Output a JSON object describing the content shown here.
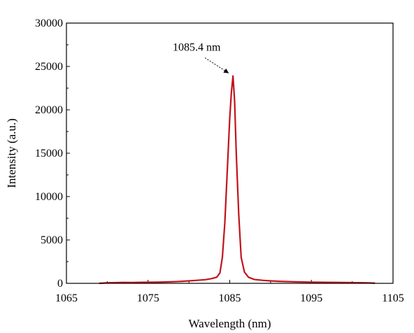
{
  "chart_data": {
    "type": "line",
    "title": "",
    "xlabel": "Wavelength (nm)",
    "ylabel": "Intensity (a.u.)",
    "xlim": [
      1065,
      1105
    ],
    "ylim": [
      0,
      30000
    ],
    "xticks": [
      "1065",
      "1075",
      "1085",
      "1095",
      "1105"
    ],
    "yticks": [
      "0",
      "5000",
      "10000",
      "15000",
      "20000",
      "25000",
      "30000"
    ],
    "grid": false,
    "legend": "none",
    "series_color": "#c0141c",
    "annotation": {
      "text": "1085.4 nm",
      "x": 1085.4,
      "y": 23900
    },
    "series": [
      {
        "x": [
          1069.0,
          1070.0,
          1071.0,
          1072.0,
          1073.0,
          1074.0,
          1075.0,
          1076.0,
          1077.0,
          1078.0,
          1079.0,
          1080.0,
          1081.0,
          1082.0,
          1082.8,
          1083.4,
          1083.8,
          1084.1,
          1084.4,
          1084.7,
          1085.0,
          1085.2,
          1085.4,
          1085.6,
          1085.8,
          1086.1,
          1086.4,
          1086.8,
          1087.3,
          1088.0,
          1089.0,
          1090.0,
          1091.0,
          1092.0,
          1093.0,
          1094.0,
          1095.0,
          1096.0,
          1097.0,
          1098.0,
          1099.0,
          1100.0,
          1101.0,
          1102.0,
          1102.8
        ],
        "y": [
          0,
          60,
          80,
          100,
          90,
          110,
          120,
          130,
          150,
          180,
          220,
          280,
          350,
          420,
          550,
          700,
          1200,
          3000,
          7000,
          13000,
          19000,
          22000,
          23900,
          21000,
          15000,
          8000,
          3000,
          1300,
          700,
          450,
          350,
          280,
          230,
          200,
          170,
          150,
          130,
          120,
          110,
          100,
          90,
          80,
          70,
          50,
          20
        ]
      }
    ]
  }
}
